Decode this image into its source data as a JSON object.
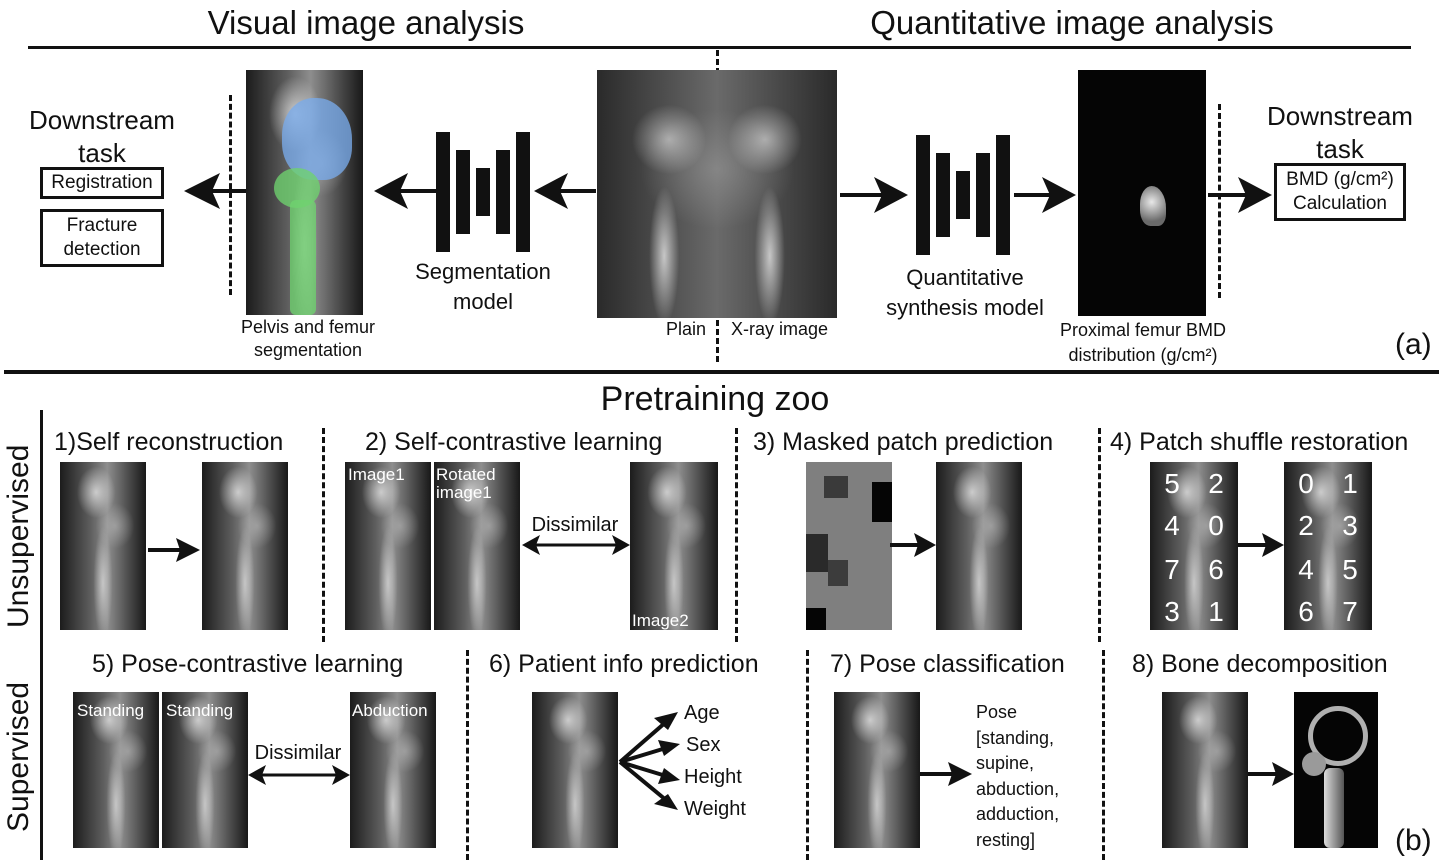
{
  "panel_a": {
    "left_title": "Visual image analysis",
    "right_title": "Quantitative image analysis",
    "downstream_left": "Downstream task",
    "task_registration": "Registration",
    "task_fracture": "Fracture detection",
    "seg_label": "Pelvis and femur segmentation",
    "seg_model": "Segmentation model",
    "plain": "Plain",
    "xray": "X-ray image",
    "quant_model": "Quantitative synthesis model",
    "femur_label": "Proximal femur BMD distribution (g/cm²)",
    "downstream_right": "Downstream task",
    "bmd_task": "BMD (g/cm²) Calculation",
    "panel_tag": "(a)"
  },
  "panel_b": {
    "title": "Pretraining zoo",
    "unsupervised": "Unsupervised",
    "supervised": "Supervised",
    "t1": "1)Self reconstruction",
    "t2": "2) Self-contrastive learning",
    "t3": "3) Masked patch prediction",
    "t4": "4) Patch shuffle restoration",
    "t5": "5) Pose-contrastive learning",
    "t6": "6) Patient info prediction",
    "t7": "7) Pose classification",
    "t8": "8) Bone decomposition",
    "image1": "Image1",
    "rotated": "Rotated image1",
    "image2": "Image2",
    "dissimilar": "Dissimilar",
    "shuffled": [
      "5",
      "2",
      "4",
      "0",
      "7",
      "6",
      "3",
      "1"
    ],
    "ordered": [
      "0",
      "1",
      "2",
      "3",
      "4",
      "5",
      "6",
      "7"
    ],
    "standing": "Standing",
    "abduction": "Abduction",
    "info": [
      "Age",
      "Sex",
      "Height",
      "Weight"
    ],
    "pose_text": [
      "Pose",
      "[standing,",
      "supine,",
      "abduction,",
      "adduction,",
      "resting]"
    ],
    "panel_tag": "(b)"
  }
}
